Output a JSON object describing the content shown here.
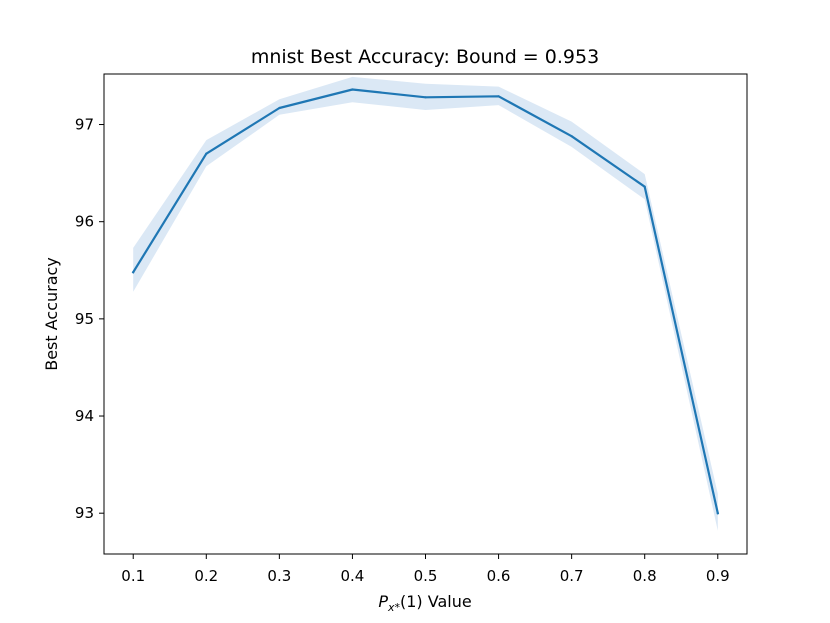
{
  "chart_data": {
    "type": "line",
    "title": "mnist Best Accuracy: Bound = 0.953",
    "xlabel_prefix": "P",
    "xlabel_sub": "x*",
    "xlabel_suffix": "(1) Value",
    "ylabel": "Best Accuracy",
    "x": [
      0.1,
      0.2,
      0.3,
      0.4,
      0.5,
      0.6,
      0.7,
      0.8,
      0.9
    ],
    "x_tick_labels": [
      "0.1",
      "0.2",
      "0.3",
      "0.4",
      "0.5",
      "0.6",
      "0.7",
      "0.8",
      "0.9"
    ],
    "y_ticks": [
      93,
      94,
      95,
      96,
      97
    ],
    "y_tick_labels": [
      "93",
      "94",
      "95",
      "96",
      "97"
    ],
    "xlim": [
      0.06,
      0.94
    ],
    "ylim": [
      92.58,
      97.52
    ],
    "series": [
      {
        "values": [
          95.48,
          96.7,
          97.17,
          97.36,
          97.28,
          97.29,
          96.88,
          96.36,
          93.0
        ],
        "band_upper": [
          95.73,
          96.84,
          97.26,
          97.49,
          97.42,
          97.39,
          97.03,
          96.49,
          93.2
        ],
        "band_lower": [
          95.28,
          96.57,
          97.1,
          97.23,
          97.15,
          97.2,
          96.77,
          96.23,
          92.82
        ],
        "color": "#1f77b4",
        "band_color": "#dbe8f5"
      }
    ],
    "grid": false,
    "legend": "none"
  }
}
